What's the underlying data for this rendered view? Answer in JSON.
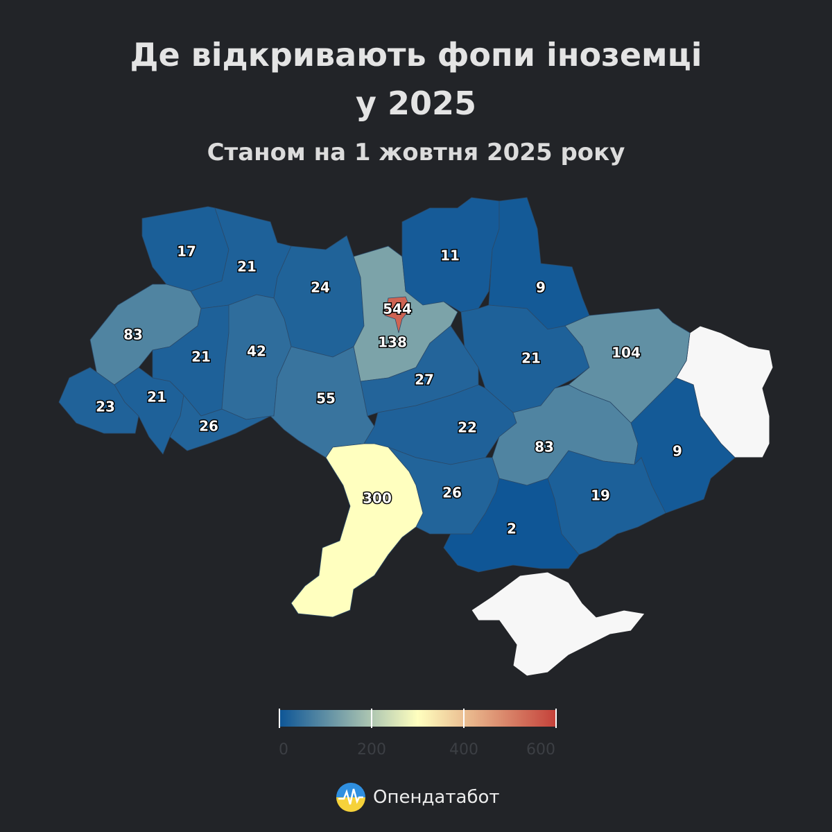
{
  "chart_data": {
    "type": "choropleth",
    "title": "Де відкривають фопи іноземці у 2025",
    "subtitle": "Станом на 1 жовтня 2025 року",
    "values": [
      17,
      21,
      24,
      138,
      544,
      11,
      9,
      83,
      21,
      42,
      23,
      21,
      26,
      55,
      27,
      21,
      104,
      22,
      83,
      9,
      19,
      2,
      26,
      300
    ],
    "color_scale": {
      "range": [
        0,
        600
      ],
      "ticks": [
        0,
        200,
        400,
        600
      ],
      "colors": [
        "#0d5596",
        "#ffffbf",
        "#c4413a"
      ]
    }
  },
  "brand": "Опендатабот"
}
